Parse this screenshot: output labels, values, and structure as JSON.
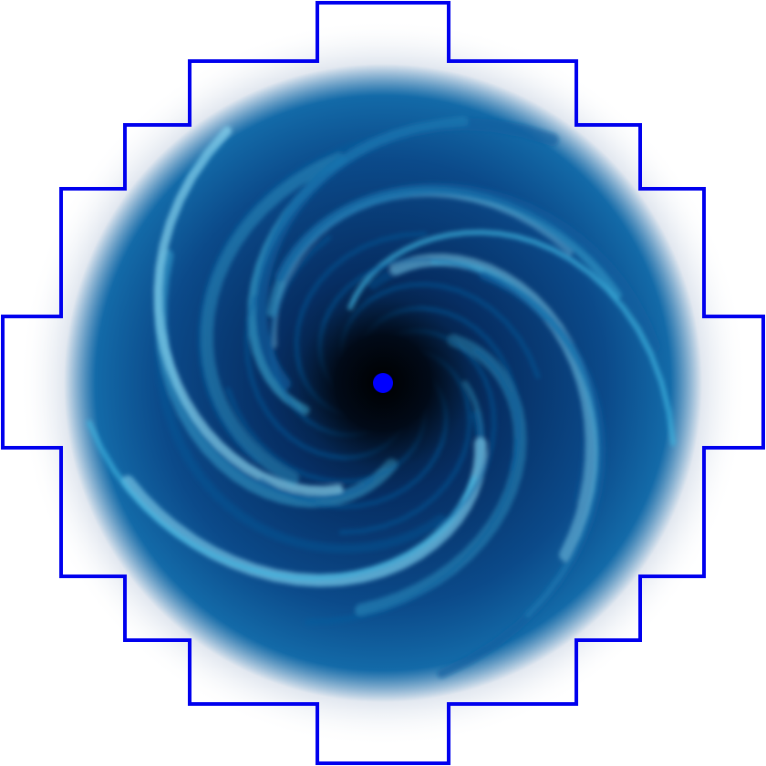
{
  "colors": {
    "background": "#ffffff",
    "boundary_outline": "#0000ee",
    "center_marker": "#0000ff",
    "vortex_core": "#010a18",
    "vortex_deep": "#062e63",
    "vortex_mid": "#0d5fa0",
    "vortex_light": "#3fb6e0",
    "vortex_glow": "#8fdcf5"
  },
  "icons": {
    "portal": "swirl-vortex-icon",
    "center": "center-dot-icon"
  }
}
